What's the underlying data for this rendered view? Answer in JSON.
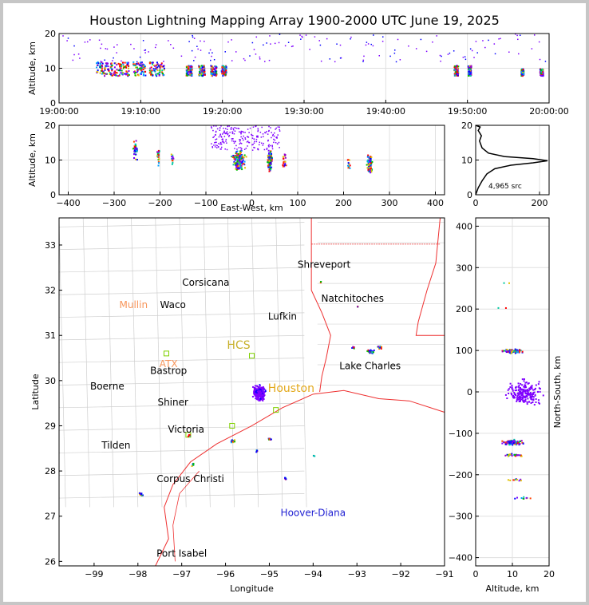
{
  "title": "Houston Lightning Mapping Array 1900-2000 UTC June 19, 2025",
  "chart_data": [
    {
      "type": "scatter",
      "panel": "altitude-vs-time",
      "ylabel": "Altitude, km",
      "xlabel": "",
      "xticks": [
        "19:00:00",
        "19:10:00",
        "19:20:00",
        "19:30:00",
        "19:40:00",
        "19:50:00",
        "20:00:00"
      ],
      "yticks": [
        "0",
        "10",
        "20"
      ],
      "ylim": [
        0,
        20
      ],
      "grid": true,
      "clusters_minutes": [
        {
          "t": [
            4.5,
            6.5
          ],
          "alt": [
            8,
            12
          ]
        },
        {
          "t": [
            6.5,
            8.5
          ],
          "alt": [
            8,
            12
          ]
        },
        {
          "t": [
            9,
            10.5
          ],
          "alt": [
            8,
            12
          ]
        },
        {
          "t": [
            11,
            12.8
          ],
          "alt": [
            8,
            12
          ]
        },
        {
          "t": [
            15.5,
            16.2
          ],
          "alt": [
            8,
            11
          ]
        },
        {
          "t": [
            17,
            17.8
          ],
          "alt": [
            8,
            11
          ]
        },
        {
          "t": [
            18.5,
            19.2
          ],
          "alt": [
            8,
            11
          ]
        },
        {
          "t": [
            19.8,
            20.4
          ],
          "alt": [
            8,
            11
          ]
        },
        {
          "t": [
            48.3,
            48.8
          ],
          "alt": [
            8,
            11
          ]
        },
        {
          "t": [
            50.0,
            50.4
          ],
          "alt": [
            8,
            11
          ]
        },
        {
          "t": [
            56.5,
            56.8
          ],
          "alt": [
            8,
            10
          ]
        },
        {
          "t": [
            58.8,
            59.2
          ],
          "alt": [
            8,
            10
          ]
        }
      ]
    },
    {
      "type": "scatter",
      "panel": "altitude-vs-east-west",
      "xlabel": "East-West, km",
      "ylabel": "Altitude, km",
      "xticks": [
        "−400",
        "−300",
        "−200",
        "−100",
        "0",
        "100",
        "200",
        "300",
        "400"
      ],
      "yticks": [
        "0",
        "10",
        "20"
      ],
      "xlim": [
        -420,
        420
      ],
      "ylim": [
        0,
        20
      ]
    },
    {
      "type": "line",
      "panel": "altitude-histogram",
      "annotation": "4,965 src",
      "xticks": [
        "0",
        "200"
      ],
      "yticks": [
        "0",
        "10",
        "20"
      ],
      "xlim": [
        0,
        230
      ],
      "ylim": [
        0,
        20
      ],
      "profile": [
        {
          "count": 0,
          "alt": 0
        },
        {
          "count": 8,
          "alt": 2
        },
        {
          "count": 20,
          "alt": 4
        },
        {
          "count": 35,
          "alt": 6
        },
        {
          "count": 60,
          "alt": 7.5
        },
        {
          "count": 110,
          "alt": 8.5
        },
        {
          "count": 180,
          "alt": 9.2
        },
        {
          "count": 225,
          "alt": 9.8
        },
        {
          "count": 180,
          "alt": 10.4
        },
        {
          "count": 90,
          "alt": 11
        },
        {
          "count": 40,
          "alt": 12
        },
        {
          "count": 20,
          "alt": 13.5
        },
        {
          "count": 12,
          "alt": 15.5
        },
        {
          "count": 18,
          "alt": 17
        },
        {
          "count": 8,
          "alt": 18.5
        },
        {
          "count": 14,
          "alt": 19.5
        },
        {
          "count": 0,
          "alt": 20
        }
      ]
    },
    {
      "type": "scatter",
      "panel": "plan-view-map",
      "xlabel": "Longitude",
      "ylabel": "Latitude",
      "xticks": [
        "−99",
        "−98",
        "−97",
        "−96",
        "−95",
        "−94",
        "−93",
        "−92",
        "−91"
      ],
      "yticks": [
        "26",
        "27",
        "28",
        "29",
        "30",
        "31",
        "32",
        "33"
      ],
      "xlim": [
        -99.8,
        -91
      ],
      "ylim": [
        25.9,
        33.6
      ],
      "places": [
        {
          "name": "Shreveport",
          "lon": -93.75,
          "lat": 32.5
        },
        {
          "name": "Corsicana",
          "lon": -96.45,
          "lat": 32.1
        },
        {
          "name": "Natchitoches",
          "lon": -93.1,
          "lat": 31.75
        },
        {
          "name": "Waco",
          "lon": -97.2,
          "lat": 31.6
        },
        {
          "name": "Lufkin",
          "lon": -94.7,
          "lat": 31.35
        },
        {
          "name": "Boerne",
          "lon": -98.7,
          "lat": 29.8
        },
        {
          "name": "Bastrop",
          "lon": -97.3,
          "lat": 30.15
        },
        {
          "name": "Shiner",
          "lon": -97.2,
          "lat": 29.45
        },
        {
          "name": "Victoria",
          "lon": -96.9,
          "lat": 28.85
        },
        {
          "name": "Tilden",
          "lon": -98.5,
          "lat": 28.5
        },
        {
          "name": "Corpus Christi",
          "lon": -96.8,
          "lat": 27.75
        },
        {
          "name": "Lake Charles",
          "lon": -92.7,
          "lat": 30.25
        },
        {
          "name": "Port Isabel",
          "lon": -97.0,
          "lat": 26.1
        }
      ],
      "stations": [
        {
          "name": "Mullin",
          "color": "#f7955a"
        },
        {
          "name": "ATX",
          "color": "#f7955a"
        },
        {
          "name": "HCS",
          "color": "#c7b02a"
        },
        {
          "name": "Houston",
          "color": "#e3a91c"
        },
        {
          "name": "Hoover-Diana",
          "color": "#1e1ed2"
        }
      ]
    },
    {
      "type": "scatter",
      "panel": "north-south-vs-altitude",
      "xlabel": "Altitude, km",
      "ylabel": "North-South, km",
      "xticks": [
        "0",
        "10",
        "20"
      ],
      "yticks": [
        "−400",
        "−300",
        "−200",
        "−100",
        "0",
        "100",
        "200",
        "300",
        "400"
      ],
      "xlim": [
        0,
        20
      ],
      "ylim": [
        -420,
        420
      ]
    }
  ]
}
